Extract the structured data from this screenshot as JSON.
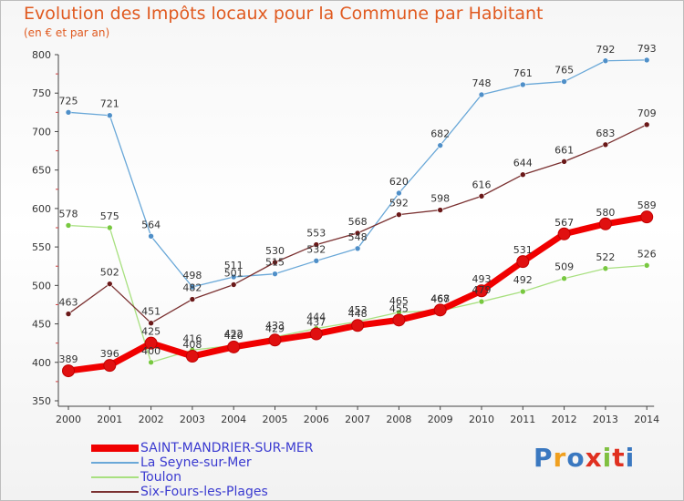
{
  "header": {
    "title": "Evolution des Impôts locaux pour la Commune par Habitant",
    "subtitle": "(en € et par an)"
  },
  "logo": {
    "text": "Proxiti",
    "colors": [
      "#3a78c0",
      "#f0a020",
      "#3a78c0",
      "#e03020",
      "#80c040",
      "#e03020",
      "#3a78c0"
    ]
  },
  "chart_data": {
    "type": "line",
    "x": [
      "2000",
      "2001",
      "2002",
      "2003",
      "2004",
      "2005",
      "2006",
      "2007",
      "2008",
      "2009",
      "2010",
      "2011",
      "2012",
      "2013",
      "2014"
    ],
    "ylim": [
      350,
      800
    ],
    "yticks": [
      350,
      400,
      450,
      500,
      550,
      600,
      650,
      700,
      750,
      800
    ],
    "grid": false,
    "legend_position": "bottom-left",
    "series": [
      {
        "name": "SAINT-MANDRIER-SUR-MER",
        "color": "#f00000",
        "marker": "#e01010",
        "values": [
          389,
          396,
          425,
          408,
          420,
          429,
          437,
          448,
          455,
          468,
          493,
          531,
          567,
          580,
          589
        ],
        "labels": [
          "389",
          "396",
          "425",
          "408",
          "420",
          "429",
          "437",
          "448",
          "455",
          "468",
          "493",
          "531",
          "567",
          "580",
          "589"
        ],
        "bold": true
      },
      {
        "name": "La Seyne-sur-Mer",
        "color": "#6aa8d8",
        "marker": "#4f8fc8",
        "values": [
          725,
          721,
          564,
          498,
          511,
          515,
          532,
          548,
          620,
          682,
          748,
          761,
          765,
          792,
          793
        ],
        "labels": [
          "725",
          "721",
          "564",
          "498",
          "511",
          "515",
          "532",
          "548",
          "620",
          "682",
          "748",
          "761",
          "765",
          "792",
          "793"
        ]
      },
      {
        "name": "Toulon",
        "color": "#a8e080",
        "marker": "#78c840",
        "values": [
          578,
          575,
          400,
          416,
          422,
          433,
          444,
          453,
          465,
          467,
          479,
          492,
          509,
          522,
          526
        ],
        "labels": [
          "578",
          "575",
          "400",
          "416",
          "422",
          "433",
          "444",
          "453",
          "465",
          "467",
          "479",
          "492",
          "509",
          "522",
          "526"
        ]
      },
      {
        "name": "Six-Fours-les-Plages",
        "color": "#7a3030",
        "marker": "#6a1818",
        "values": [
          463,
          502,
          451,
          482,
          501,
          530,
          553,
          568,
          592,
          598,
          616,
          644,
          661,
          683,
          709
        ],
        "labels": [
          "463",
          "502",
          "451",
          "482",
          "501",
          "530",
          "553",
          "568",
          "592",
          "598",
          "616",
          "644",
          "661",
          "683",
          "709"
        ]
      }
    ]
  }
}
